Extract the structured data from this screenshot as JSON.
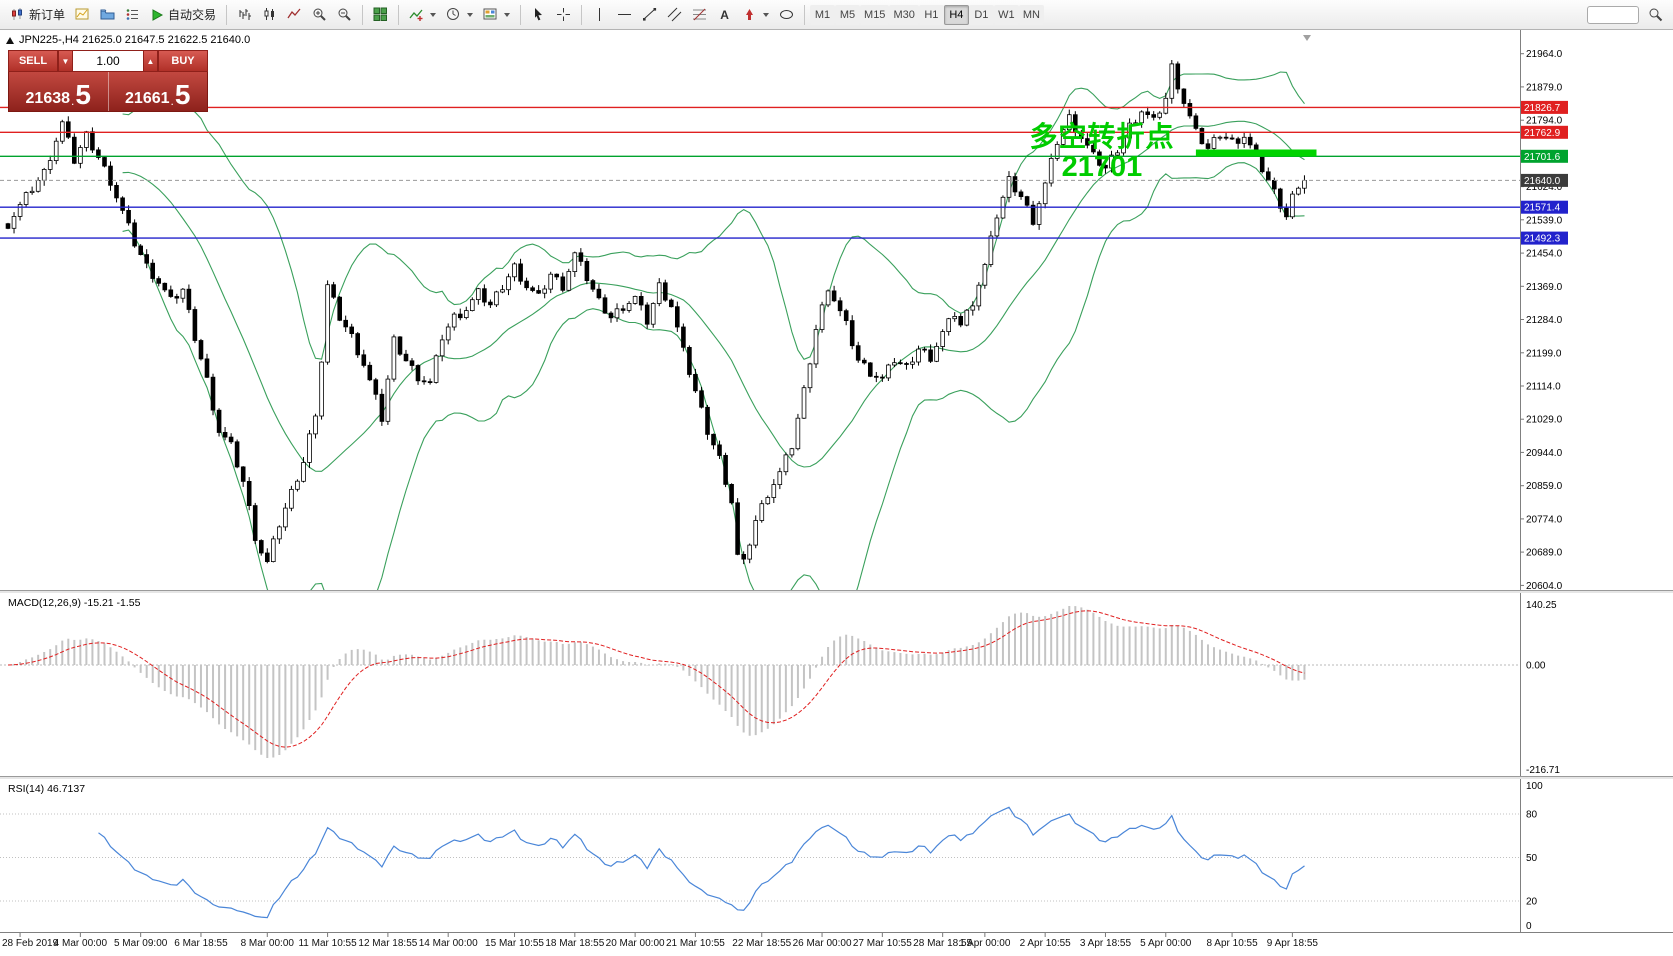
{
  "toolbar": {
    "new_order_label": "新订单",
    "autotrading_label": "自动交易",
    "timeframes": {
      "items": [
        "M1",
        "M5",
        "M15",
        "M30",
        "H1",
        "H4",
        "D1",
        "W1",
        "MN"
      ],
      "active": "H4"
    },
    "icon_names": [
      "new-order-icon",
      "new-chart-icon",
      "profiles-icon",
      "market-watch-icon",
      "autotrading-icon",
      "bar-chart-icon",
      "candlestick-chart-icon",
      "line-chart-icon",
      "zoom-in-icon",
      "zoom-out-icon",
      "tile-windows-icon",
      "indicators-icon",
      "periods-icon",
      "templates-icon",
      "cursor-icon",
      "crosshair-icon",
      "vertical-line-icon",
      "horizontal-line-icon",
      "trendline-icon",
      "channel-icon",
      "fibonacci-icon",
      "text-icon",
      "arrows-icon",
      "shapes-icon",
      "search-icon"
    ]
  },
  "symbol_header": {
    "text": "JPN225-,H4  21625.0 21647.5 21622.5 21640.0"
  },
  "trade_panel": {
    "sell_label": "SELL",
    "buy_label": "BUY",
    "volume": "1.00",
    "sell_price_main": "21638",
    "sell_price_pip": "5",
    "buy_price_main": "21661",
    "buy_price_pip": "5",
    "decimal": "."
  },
  "annotation": {
    "line1": "多空转折点",
    "line2": "21701",
    "color": "#00cc00"
  },
  "chart_data": [
    {
      "type": "candlestick",
      "title": "JPN225-,H4",
      "open": 21625.0,
      "high": 21647.5,
      "low": 21622.5,
      "close": 21640.0,
      "y_axis_labels": [
        "21964.0",
        "21879.0",
        "21794.0",
        "21709.0",
        "21624.0",
        "21539.0",
        "21454.0",
        "21369.0",
        "21284.0",
        "21199.0",
        "21114.0",
        "21029.0",
        "20944.0",
        "20859.0",
        "20774.0",
        "20689.0",
        "20604.0"
      ],
      "x_axis_labels": [
        {
          "t": "28 Feb 2019",
          "i": 2
        },
        {
          "t": "4 Mar 00:00",
          "i": 12
        },
        {
          "t": "5 Mar 09:00",
          "i": 22
        },
        {
          "t": "6 Mar 18:55",
          "i": 32
        },
        {
          "t": "8 Mar 00:00",
          "i": 43
        },
        {
          "t": "11 Mar 10:55",
          "i": 53
        },
        {
          "t": "12 Mar 18:55",
          "i": 63
        },
        {
          "t": "14 Mar 00:00",
          "i": 73
        },
        {
          "t": "15 Mar 10:55",
          "i": 84
        },
        {
          "t": "18 Mar 18:55",
          "i": 94
        },
        {
          "t": "20 Mar 00:00",
          "i": 104
        },
        {
          "t": "21 Mar 10:55",
          "i": 114
        },
        {
          "t": "22 Mar 18:55",
          "i": 125
        },
        {
          "t": "26 Mar 00:00",
          "i": 135
        },
        {
          "t": "27 Mar 10:55",
          "i": 145
        },
        {
          "t": "28 Mar 18:55",
          "i": 155
        },
        {
          "t": "1 Apr 00:00",
          "i": 162
        },
        {
          "t": "2 Apr 10:55",
          "i": 172
        },
        {
          "t": "3 Apr 18:55",
          "i": 182
        },
        {
          "t": "5 Apr 00:00",
          "i": 192
        },
        {
          "t": "8 Apr 10:55",
          "i": 203
        },
        {
          "t": "9 Apr 18:55",
          "i": 213
        }
      ],
      "horizontal_lines": [
        {
          "price": 21826.7,
          "label": "21826.7",
          "color": "#e02020"
        },
        {
          "price": 21762.9,
          "label": "21762.9",
          "color": "#e02020"
        },
        {
          "price": 21701.6,
          "label": "21701.6",
          "color": "#00a32e"
        },
        {
          "price": 21571.4,
          "label": "21571.4",
          "color": "#2222cc"
        },
        {
          "price": 21492.3,
          "label": "21492.3",
          "color": "#2222cc"
        }
      ],
      "bid_line": {
        "price": 21640.0,
        "label": "21640.0",
        "tag_bg": "#3c3c3c",
        "line_color": "#999999"
      },
      "highlight_segment": {
        "from_i": 197,
        "to_i": 217,
        "price": 21710,
        "color": "#00d300",
        "thickness": 7
      },
      "bollinger": {
        "period": 20,
        "deviation": 2,
        "color": "#3aa05c"
      },
      "candle_count": 216,
      "up_color": "#ffffff",
      "down_color": "#000000",
      "outline": "#000000",
      "close_pivots": [
        [
          0,
          21530
        ],
        [
          2,
          21575
        ],
        [
          4,
          21620
        ],
        [
          6,
          21660
        ],
        [
          9,
          21785
        ],
        [
          11,
          21690
        ],
        [
          13,
          21755
        ],
        [
          15,
          21700
        ],
        [
          17,
          21640
        ],
        [
          19,
          21560
        ],
        [
          21,
          21480
        ],
        [
          23,
          21420
        ],
        [
          25,
          21380
        ],
        [
          27,
          21330
        ],
        [
          29,
          21360
        ],
        [
          31,
          21240
        ],
        [
          33,
          21130
        ],
        [
          35,
          21000
        ],
        [
          37,
          20960
        ],
        [
          39,
          20870
        ],
        [
          40,
          20800
        ],
        [
          41,
          20730
        ],
        [
          42,
          20690
        ],
        [
          43,
          20660
        ],
        [
          45,
          20760
        ],
        [
          47,
          20840
        ],
        [
          49,
          20920
        ],
        [
          51,
          21050
        ],
        [
          52,
          21180
        ],
        [
          53,
          21370
        ],
        [
          55,
          21290
        ],
        [
          57,
          21240
        ],
        [
          59,
          21170
        ],
        [
          61,
          21080
        ],
        [
          62,
          21030
        ],
        [
          64,
          21230
        ],
        [
          66,
          21180
        ],
        [
          68,
          21140
        ],
        [
          70,
          21120
        ],
        [
          72,
          21240
        ],
        [
          74,
          21290
        ],
        [
          76,
          21310
        ],
        [
          78,
          21350
        ],
        [
          80,
          21320
        ],
        [
          82,
          21370
        ],
        [
          84,
          21420
        ],
        [
          86,
          21370
        ],
        [
          88,
          21340
        ],
        [
          90,
          21400
        ],
        [
          92,
          21370
        ],
        [
          94,
          21450
        ],
        [
          96,
          21390
        ],
        [
          98,
          21330
        ],
        [
          100,
          21290
        ],
        [
          102,
          21320
        ],
        [
          104,
          21340
        ],
        [
          106,
          21280
        ],
        [
          108,
          21370
        ],
        [
          110,
          21320
        ],
        [
          112,
          21200
        ],
        [
          114,
          21100
        ],
        [
          116,
          21000
        ],
        [
          118,
          20930
        ],
        [
          120,
          20820
        ],
        [
          121,
          20680
        ],
        [
          122,
          20660
        ],
        [
          124,
          20770
        ],
        [
          126,
          20840
        ],
        [
          128,
          20890
        ],
        [
          130,
          20960
        ],
        [
          132,
          21100
        ],
        [
          134,
          21260
        ],
        [
          136,
          21370
        ],
        [
          139,
          21270
        ],
        [
          141,
          21180
        ],
        [
          143,
          21150
        ],
        [
          145,
          21130
        ],
        [
          147,
          21180
        ],
        [
          149,
          21160
        ],
        [
          151,
          21210
        ],
        [
          153,
          21190
        ],
        [
          155,
          21250
        ],
        [
          157,
          21300
        ],
        [
          158,
          21270
        ],
        [
          160,
          21330
        ],
        [
          162,
          21420
        ],
        [
          164,
          21550
        ],
        [
          166,
          21640
        ],
        [
          168,
          21600
        ],
        [
          170,
          21540
        ],
        [
          172,
          21630
        ],
        [
          174,
          21740
        ],
        [
          176,
          21800
        ],
        [
          178,
          21750
        ],
        [
          180,
          21700
        ],
        [
          182,
          21670
        ],
        [
          184,
          21720
        ],
        [
          186,
          21780
        ],
        [
          188,
          21820
        ],
        [
          190,
          21790
        ],
        [
          192,
          21850
        ],
        [
          193,
          21930
        ],
        [
          195,
          21840
        ],
        [
          197,
          21760
        ],
        [
          199,
          21720
        ],
        [
          201,
          21760
        ],
        [
          203,
          21740
        ],
        [
          205,
          21755
        ],
        [
          207,
          21700
        ],
        [
          209,
          21640
        ],
        [
          211,
          21580
        ],
        [
          212,
          21550
        ],
        [
          213,
          21600
        ],
        [
          215,
          21640
        ]
      ]
    },
    {
      "type": "macd-histogram",
      "label": "MACD(12,26,9) -15.21 -1.55",
      "params": {
        "fast": 12,
        "slow": 26,
        "signal": 9
      },
      "main_value": "-15.21",
      "signal_value": "-1.55",
      "axis_labels": [
        "140.25",
        "0.00",
        "-216.71"
      ],
      "histogram_color": "#c4c4c4",
      "signal_color": "#e02020"
    },
    {
      "type": "rsi-line",
      "label": "RSI(14) 46.7137",
      "period": 14,
      "value": 46.7137,
      "axis_labels": [
        {
          "v": 100,
          "t": "100"
        },
        {
          "v": 80,
          "t": "80"
        },
        {
          "v": 50,
          "t": "50"
        },
        {
          "v": 20,
          "t": "20"
        },
        {
          "v": 0,
          "t": "0"
        }
      ],
      "levels": [
        80,
        50,
        20
      ],
      "line_color": "#4a86d8"
    }
  ]
}
